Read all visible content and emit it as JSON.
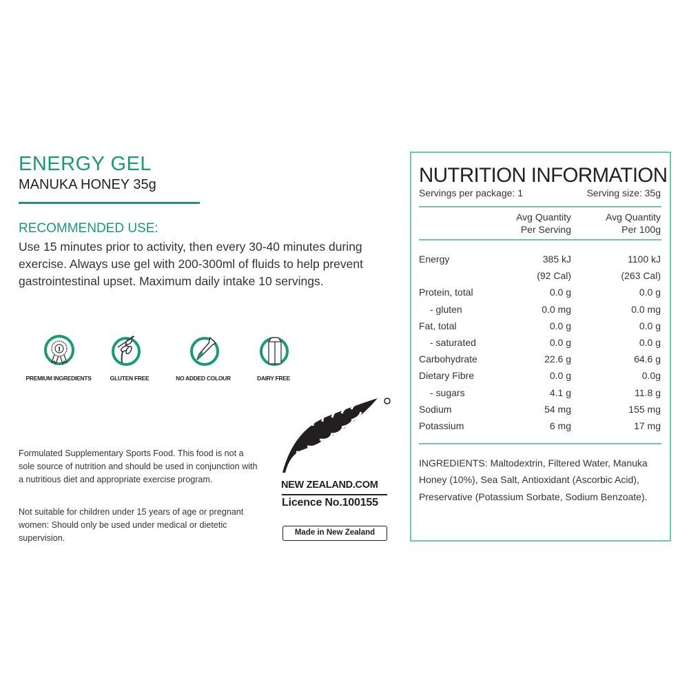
{
  "product": {
    "title": "ENERGY GEL",
    "subtitle": "MANUKA HONEY 35g"
  },
  "recommended": {
    "heading": "RECOMMENDED USE:",
    "body": "Use 15 minutes prior to activity, then every 30-40 minutes during exercise. Always use gel with 200-300ml of fluids to help prevent gastrointestinal upset. Maximum daily intake 10 servings."
  },
  "badges": [
    {
      "icon": "award-ribbon-icon",
      "label": "PREMIUM INGREDIENTS"
    },
    {
      "icon": "wheat-crossed-icon",
      "label": "GLUTEN FREE"
    },
    {
      "icon": "dropper-icon",
      "label": "NO ADDED COLOUR"
    },
    {
      "icon": "milk-carton-icon",
      "label": "DAIRY FREE"
    }
  ],
  "disclaimer": {
    "p1": "Formulated Supplementary Sports Food. This food is not a sole source of nutrition and should be used in conjunction with a nutritious diet and appropriate exercise program.",
    "p2": "Not suitable for children under 15 years of age or pregnant women: Should only be used under medical or dietetic supervision."
  },
  "nz_logo": {
    "brand": "NEW ZEALAND.COM",
    "licence": "Licence No.100155",
    "made": "Made in New Zealand"
  },
  "nutrition": {
    "title": "NUTRITION INFORMATION",
    "servings": "Servings per package: 1",
    "serving_size": "Serving size: 35g",
    "col1": [
      "Avg Quantity",
      "Per Serving"
    ],
    "col2": [
      "Avg Quantity",
      "Per 100g"
    ],
    "rows": [
      [
        "Energy",
        "385 kJ",
        "1100 kJ"
      ],
      [
        "",
        "(92 Cal)",
        "(263 Cal)"
      ],
      [
        "Protein, total",
        "0.0 g",
        "0.0 g"
      ],
      [
        "- gluten",
        "0.0 mg",
        "0.0 mg"
      ],
      [
        "Fat, total",
        "0.0 g",
        "0.0 g"
      ],
      [
        "- saturated",
        "0.0 g",
        "0.0 g"
      ],
      [
        "Carbohydrate",
        "22.6 g",
        "64.6 g"
      ],
      [
        "Dietary Fibre",
        "0.0 g",
        "0.0g"
      ],
      [
        "- sugars",
        "4.1 g",
        "11.8 g"
      ],
      [
        "Sodium",
        "54 mg",
        "155 mg"
      ],
      [
        "Potassium",
        "6 mg",
        "17 mg"
      ]
    ],
    "ingredients": "INGREDIENTS: Maltodextrin, Filtered Water, Manuka Honey (10%), Sea Salt, Antioxidant (Ascorbic Acid), Preservative (Potassium Sorbate, Sodium Benzoate)."
  },
  "colors": {
    "brand_green": "#1a9a72",
    "panel_teal": "#6cc5b5"
  }
}
